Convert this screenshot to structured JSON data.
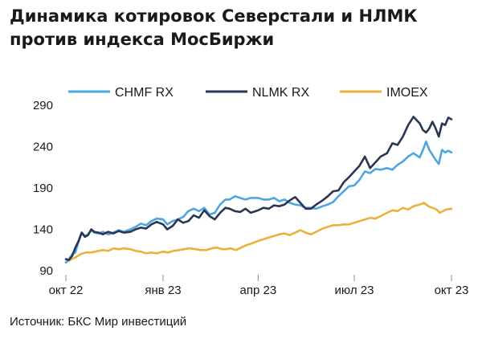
{
  "title_line1": "Динамика котировок Северстали и НЛМК",
  "title_line2": "против индекса МосБиржи",
  "source": "Источник: БКС Мир инвестиций",
  "chart_data": {
    "type": "line",
    "ylim": [
      90,
      290
    ],
    "yticks": [
      90,
      140,
      190,
      240,
      290
    ],
    "xlim": [
      "2022-10-01",
      "2023-10-01"
    ],
    "xticks": [
      {
        "label": "окт 22",
        "date": "2022-10-01"
      },
      {
        "label": "янв 23",
        "date": "2023-01-01"
      },
      {
        "label": "апр 23",
        "date": "2023-04-01"
      },
      {
        "label": "июл 23",
        "date": "2023-07-01"
      },
      {
        "label": "окт 23",
        "date": "2023-10-01"
      }
    ],
    "legend_position": "top",
    "grid": false,
    "series": [
      {
        "name": "CHMF RX",
        "color": "#4da6e0",
        "points": [
          [
            "2022-10-01",
            100
          ],
          [
            "2022-10-04",
            104
          ],
          [
            "2022-10-07",
            110
          ],
          [
            "2022-10-10",
            112
          ],
          [
            "2022-10-13",
            125
          ],
          [
            "2022-10-16",
            136
          ],
          [
            "2022-10-19",
            132
          ],
          [
            "2022-10-22",
            134
          ],
          [
            "2022-10-25",
            139
          ],
          [
            "2022-10-28",
            136
          ],
          [
            "2022-11-01",
            135
          ],
          [
            "2022-11-05",
            137
          ],
          [
            "2022-11-10",
            134
          ],
          [
            "2022-11-15",
            136
          ],
          [
            "2022-11-20",
            139
          ],
          [
            "2022-11-25",
            137
          ],
          [
            "2022-12-01",
            140
          ],
          [
            "2022-12-06",
            143
          ],
          [
            "2022-12-11",
            147
          ],
          [
            "2022-12-16",
            145
          ],
          [
            "2022-12-21",
            150
          ],
          [
            "2022-12-26",
            153
          ],
          [
            "2023-01-01",
            152
          ],
          [
            "2023-01-05",
            146
          ],
          [
            "2023-01-10",
            150
          ],
          [
            "2023-01-15",
            152
          ],
          [
            "2023-01-20",
            155
          ],
          [
            "2023-01-25",
            162
          ],
          [
            "2023-01-30",
            165
          ],
          [
            "2023-02-04",
            162
          ],
          [
            "2023-02-09",
            166
          ],
          [
            "2023-02-14",
            158
          ],
          [
            "2023-02-19",
            160
          ],
          [
            "2023-02-24",
            170
          ],
          [
            "2023-03-01",
            176
          ],
          [
            "2023-03-05",
            176
          ],
          [
            "2023-03-10",
            180
          ],
          [
            "2023-03-15",
            178
          ],
          [
            "2023-03-20",
            176
          ],
          [
            "2023-03-25",
            178
          ],
          [
            "2023-04-01",
            178
          ],
          [
            "2023-04-06",
            176
          ],
          [
            "2023-04-11",
            176
          ],
          [
            "2023-04-16",
            178
          ],
          [
            "2023-04-21",
            174
          ],
          [
            "2023-04-26",
            176
          ],
          [
            "2023-05-01",
            172
          ],
          [
            "2023-05-06",
            170
          ],
          [
            "2023-05-11",
            169
          ],
          [
            "2023-05-16",
            166
          ],
          [
            "2023-05-21",
            166
          ],
          [
            "2023-05-26",
            165
          ],
          [
            "2023-06-01",
            168
          ],
          [
            "2023-06-06",
            170
          ],
          [
            "2023-06-11",
            173
          ],
          [
            "2023-06-16",
            180
          ],
          [
            "2023-06-21",
            186
          ],
          [
            "2023-06-26",
            192
          ],
          [
            "2023-07-01",
            193
          ],
          [
            "2023-07-06",
            200
          ],
          [
            "2023-07-11",
            210
          ],
          [
            "2023-07-16",
            208
          ],
          [
            "2023-07-21",
            213
          ],
          [
            "2023-07-26",
            212
          ],
          [
            "2023-08-01",
            214
          ],
          [
            "2023-08-06",
            212
          ],
          [
            "2023-08-11",
            218
          ],
          [
            "2023-08-16",
            222
          ],
          [
            "2023-08-21",
            228
          ],
          [
            "2023-08-26",
            232
          ],
          [
            "2023-09-01",
            227
          ],
          [
            "2023-09-04",
            236
          ],
          [
            "2023-09-07",
            246
          ],
          [
            "2023-09-10",
            236
          ],
          [
            "2023-09-13",
            230
          ],
          [
            "2023-09-16",
            224
          ],
          [
            "2023-09-19",
            219
          ],
          [
            "2023-09-22",
            236
          ],
          [
            "2023-09-25",
            233
          ],
          [
            "2023-09-28",
            235
          ],
          [
            "2023-10-01",
            233
          ]
        ]
      },
      {
        "name": "NLMK RX",
        "color": "#2b3654",
        "points": [
          [
            "2022-10-01",
            104
          ],
          [
            "2022-10-04",
            103
          ],
          [
            "2022-10-07",
            108
          ],
          [
            "2022-10-10",
            118
          ],
          [
            "2022-10-13",
            126
          ],
          [
            "2022-10-16",
            136
          ],
          [
            "2022-10-19",
            131
          ],
          [
            "2022-10-22",
            133
          ],
          [
            "2022-10-25",
            140
          ],
          [
            "2022-10-28",
            137
          ],
          [
            "2022-11-01",
            136
          ],
          [
            "2022-11-05",
            134
          ],
          [
            "2022-11-10",
            137
          ],
          [
            "2022-11-15",
            135
          ],
          [
            "2022-11-20",
            138
          ],
          [
            "2022-11-25",
            136
          ],
          [
            "2022-12-01",
            137
          ],
          [
            "2022-12-06",
            140
          ],
          [
            "2022-12-11",
            142
          ],
          [
            "2022-12-16",
            141
          ],
          [
            "2022-12-21",
            146
          ],
          [
            "2022-12-26",
            149
          ],
          [
            "2023-01-01",
            146
          ],
          [
            "2023-01-05",
            140
          ],
          [
            "2023-01-10",
            144
          ],
          [
            "2023-01-15",
            152
          ],
          [
            "2023-01-20",
            148
          ],
          [
            "2023-01-25",
            150
          ],
          [
            "2023-01-30",
            157
          ],
          [
            "2023-02-04",
            154
          ],
          [
            "2023-02-09",
            163
          ],
          [
            "2023-02-14",
            156
          ],
          [
            "2023-02-19",
            152
          ],
          [
            "2023-02-24",
            160
          ],
          [
            "2023-03-01",
            166
          ],
          [
            "2023-03-05",
            165
          ],
          [
            "2023-03-10",
            162
          ],
          [
            "2023-03-15",
            161
          ],
          [
            "2023-03-20",
            165
          ],
          [
            "2023-03-25",
            160
          ],
          [
            "2023-04-01",
            163
          ],
          [
            "2023-04-06",
            166
          ],
          [
            "2023-04-11",
            165
          ],
          [
            "2023-04-16",
            169
          ],
          [
            "2023-04-21",
            168
          ],
          [
            "2023-04-26",
            170
          ],
          [
            "2023-05-01",
            175
          ],
          [
            "2023-05-06",
            179
          ],
          [
            "2023-05-11",
            172
          ],
          [
            "2023-05-16",
            165
          ],
          [
            "2023-05-21",
            165
          ],
          [
            "2023-05-26",
            170
          ],
          [
            "2023-06-01",
            175
          ],
          [
            "2023-06-06",
            180
          ],
          [
            "2023-06-11",
            186
          ],
          [
            "2023-06-16",
            187
          ],
          [
            "2023-06-21",
            197
          ],
          [
            "2023-06-26",
            203
          ],
          [
            "2023-07-01",
            210
          ],
          [
            "2023-07-06",
            217
          ],
          [
            "2023-07-11",
            228
          ],
          [
            "2023-07-16",
            214
          ],
          [
            "2023-07-21",
            221
          ],
          [
            "2023-07-26",
            228
          ],
          [
            "2023-08-01",
            232
          ],
          [
            "2023-08-06",
            244
          ],
          [
            "2023-08-11",
            242
          ],
          [
            "2023-08-16",
            252
          ],
          [
            "2023-08-21",
            266
          ],
          [
            "2023-08-26",
            276
          ],
          [
            "2023-09-01",
            268
          ],
          [
            "2023-09-04",
            260
          ],
          [
            "2023-09-07",
            257
          ],
          [
            "2023-09-10",
            262
          ],
          [
            "2023-09-13",
            270
          ],
          [
            "2023-09-16",
            262
          ],
          [
            "2023-09-19",
            252
          ],
          [
            "2023-09-22",
            268
          ],
          [
            "2023-09-25",
            266
          ],
          [
            "2023-09-28",
            275
          ],
          [
            "2023-10-01",
            273
          ]
        ]
      },
      {
        "name": "IMOEX",
        "color": "#eab13d",
        "points": [
          [
            "2022-10-01",
            100
          ],
          [
            "2022-10-05",
            103
          ],
          [
            "2022-10-10",
            106
          ],
          [
            "2022-10-15",
            110
          ],
          [
            "2022-10-20",
            112
          ],
          [
            "2022-10-25",
            112
          ],
          [
            "2022-11-01",
            114
          ],
          [
            "2022-11-05",
            115
          ],
          [
            "2022-11-10",
            114
          ],
          [
            "2022-11-15",
            117
          ],
          [
            "2022-11-20",
            116
          ],
          [
            "2022-11-25",
            117
          ],
          [
            "2022-12-01",
            116
          ],
          [
            "2022-12-06",
            114
          ],
          [
            "2022-12-11",
            113
          ],
          [
            "2022-12-16",
            111
          ],
          [
            "2022-12-21",
            112
          ],
          [
            "2022-12-26",
            111
          ],
          [
            "2023-01-01",
            113
          ],
          [
            "2023-01-06",
            112
          ],
          [
            "2023-01-11",
            114
          ],
          [
            "2023-01-16",
            115
          ],
          [
            "2023-01-21",
            116
          ],
          [
            "2023-01-26",
            117
          ],
          [
            "2023-02-01",
            116
          ],
          [
            "2023-02-06",
            115
          ],
          [
            "2023-02-11",
            115
          ],
          [
            "2023-02-16",
            117
          ],
          [
            "2023-02-21",
            118
          ],
          [
            "2023-02-26",
            116
          ],
          [
            "2023-03-01",
            116
          ],
          [
            "2023-03-06",
            117
          ],
          [
            "2023-03-11",
            115
          ],
          [
            "2023-03-16",
            118
          ],
          [
            "2023-03-21",
            121
          ],
          [
            "2023-03-26",
            123
          ],
          [
            "2023-04-01",
            126
          ],
          [
            "2023-04-06",
            128
          ],
          [
            "2023-04-11",
            130
          ],
          [
            "2023-04-16",
            132
          ],
          [
            "2023-04-21",
            134
          ],
          [
            "2023-04-26",
            135
          ],
          [
            "2023-05-01",
            133
          ],
          [
            "2023-05-06",
            136
          ],
          [
            "2023-05-11",
            139
          ],
          [
            "2023-05-16",
            136
          ],
          [
            "2023-05-21",
            134
          ],
          [
            "2023-05-26",
            137
          ],
          [
            "2023-06-01",
            141
          ],
          [
            "2023-06-06",
            143
          ],
          [
            "2023-06-11",
            145
          ],
          [
            "2023-06-16",
            145
          ],
          [
            "2023-06-21",
            146
          ],
          [
            "2023-06-26",
            146
          ],
          [
            "2023-07-01",
            148
          ],
          [
            "2023-07-06",
            150
          ],
          [
            "2023-07-11",
            152
          ],
          [
            "2023-07-16",
            154
          ],
          [
            "2023-07-21",
            153
          ],
          [
            "2023-07-26",
            156
          ],
          [
            "2023-08-01",
            160
          ],
          [
            "2023-08-06",
            163
          ],
          [
            "2023-08-11",
            162
          ],
          [
            "2023-08-16",
            166
          ],
          [
            "2023-08-21",
            164
          ],
          [
            "2023-08-26",
            168
          ],
          [
            "2023-09-01",
            170
          ],
          [
            "2023-09-05",
            172
          ],
          [
            "2023-09-09",
            168
          ],
          [
            "2023-09-13",
            166
          ],
          [
            "2023-09-17",
            164
          ],
          [
            "2023-09-20",
            160
          ],
          [
            "2023-09-23",
            162
          ],
          [
            "2023-09-26",
            164
          ],
          [
            "2023-10-01",
            165
          ]
        ]
      }
    ]
  }
}
